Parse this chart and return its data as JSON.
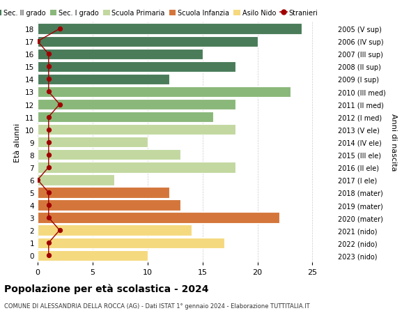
{
  "ages": [
    18,
    17,
    16,
    15,
    14,
    13,
    12,
    11,
    10,
    9,
    8,
    7,
    6,
    5,
    4,
    3,
    2,
    1,
    0
  ],
  "years": [
    "2005 (V sup)",
    "2006 (IV sup)",
    "2007 (III sup)",
    "2008 (II sup)",
    "2009 (I sup)",
    "2010 (III med)",
    "2011 (II med)",
    "2012 (I med)",
    "2013 (V ele)",
    "2014 (IV ele)",
    "2015 (III ele)",
    "2016 (II ele)",
    "2017 (I ele)",
    "2018 (mater)",
    "2019 (mater)",
    "2020 (mater)",
    "2021 (nido)",
    "2022 (nido)",
    "2023 (nido)"
  ],
  "values": [
    24,
    20,
    15,
    18,
    12,
    23,
    18,
    16,
    18,
    10,
    13,
    18,
    7,
    12,
    13,
    22,
    14,
    17,
    10
  ],
  "stranieri": [
    2,
    0,
    1,
    1,
    1,
    1,
    2,
    1,
    1,
    1,
    1,
    1,
    0,
    1,
    1,
    1,
    2,
    1,
    1
  ],
  "bar_colors": [
    "#4a7c59",
    "#4a7c59",
    "#4a7c59",
    "#4a7c59",
    "#4a7c59",
    "#8ab87a",
    "#8ab87a",
    "#8ab87a",
    "#c2d8a0",
    "#c2d8a0",
    "#c2d8a0",
    "#c2d8a0",
    "#c2d8a0",
    "#d4763b",
    "#d4763b",
    "#d4763b",
    "#f5d97e",
    "#f5d97e",
    "#f5d97e"
  ],
  "legend_labels": [
    "Sec. II grado",
    "Sec. I grado",
    "Scuola Primaria",
    "Scuola Infanzia",
    "Asilo Nido",
    "Stranieri"
  ],
  "legend_colors_list": [
    "#4a7c59",
    "#8ab87a",
    "#c2d8a0",
    "#d4763b",
    "#f5d97e",
    "#a00000"
  ],
  "stranieri_color": "#a00000",
  "title": "Popolazione per età scolastica - 2024",
  "subtitle": "COMUNE DI ALESSANDRIA DELLA ROCCA (AG) - Dati ISTAT 1° gennaio 2024 - Elaborazione TUTTITALIA.IT",
  "ylabel_left": "Età alunni",
  "ylabel_right": "Anni di nascita",
  "xlim": [
    0,
    27
  ],
  "background_color": "#ffffff",
  "grid_color": "#cccccc"
}
